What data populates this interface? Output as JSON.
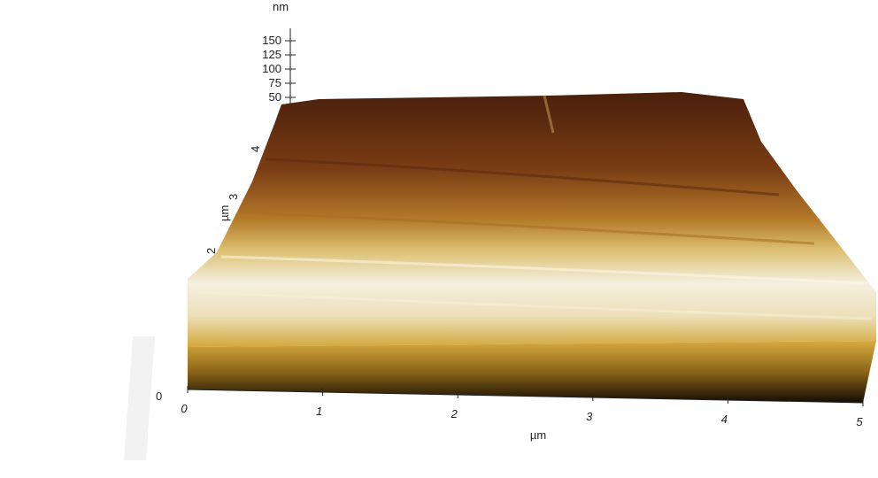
{
  "z_axis": {
    "unit": "nm",
    "ticks": [
      "150",
      "125",
      "100",
      "75",
      "50"
    ]
  },
  "y_axis": {
    "unit": "µm",
    "ticks": [
      "4",
      "3",
      "2"
    ]
  },
  "x_axis": {
    "unit": "µm",
    "ticks": [
      "0",
      "1",
      "2",
      "3",
      "4",
      "5"
    ]
  },
  "origin_label": "0"
}
